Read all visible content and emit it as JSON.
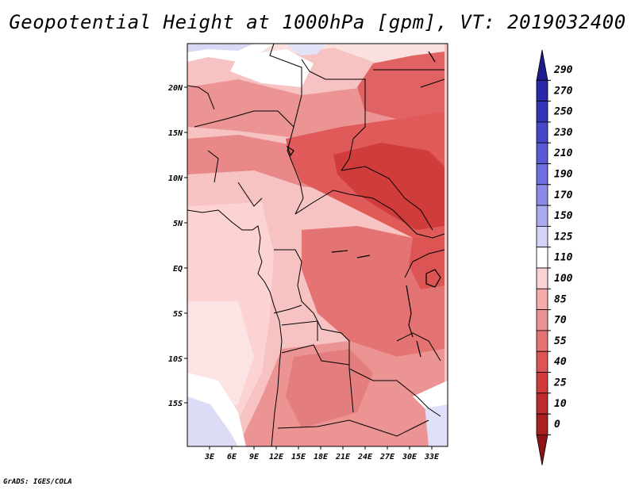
{
  "title": "Geopotential Height at 1000hPa [gpm], VT: 2019032400",
  "credit": "GrADS: IGES/COLA",
  "map": {
    "lat_labels": [
      "20N",
      "15N",
      "10N",
      "5N",
      "EQ",
      "5S",
      "10S",
      "15S"
    ],
    "lon_labels": [
      "3E",
      "6E",
      "9E",
      "12E",
      "15E",
      "18E",
      "21E",
      "24E",
      "27E",
      "30E",
      "33E"
    ]
  },
  "colorbar": {
    "levels": [
      "290",
      "270",
      "250",
      "230",
      "210",
      "190",
      "170",
      "150",
      "125",
      "110",
      "100",
      "85",
      "70",
      "55",
      "40",
      "25",
      "10",
      "0"
    ],
    "colors": [
      "#1c1c8c",
      "#2828a8",
      "#3434b8",
      "#4646c8",
      "#5a5ad6",
      "#6e6ee0",
      "#8a8ae8",
      "#aaaaf0",
      "#d4d4f8",
      "#ffffff",
      "#fcd2d2",
      "#f4aaaa",
      "#ec9494",
      "#e47474",
      "#dc5454",
      "#d03c3c",
      "#bc2c2c",
      "#a82020",
      "#8c1414"
    ]
  },
  "chart_data": {
    "type": "heatmap",
    "title": "Geopotential Height at 1000hPa [gpm], VT: 2019032400",
    "variable": "Geopotential Height",
    "level": "1000hPa",
    "units": "gpm",
    "valid_time": "2019032400",
    "contour_levels": [
      0,
      10,
      25,
      40,
      55,
      70,
      85,
      100,
      110,
      125,
      150,
      170,
      190,
      210,
      230,
      250,
      270,
      290
    ],
    "x_ticks": [
      "3E",
      "6E",
      "9E",
      "12E",
      "15E",
      "18E",
      "21E",
      "24E",
      "27E",
      "30E",
      "33E"
    ],
    "y_ticks": [
      "20N",
      "15N",
      "10N",
      "5N",
      "EQ",
      "5S",
      "10S",
      "15S"
    ],
    "lon_range": [
      0,
      35
    ],
    "lat_range": [
      -20,
      25
    ]
  }
}
